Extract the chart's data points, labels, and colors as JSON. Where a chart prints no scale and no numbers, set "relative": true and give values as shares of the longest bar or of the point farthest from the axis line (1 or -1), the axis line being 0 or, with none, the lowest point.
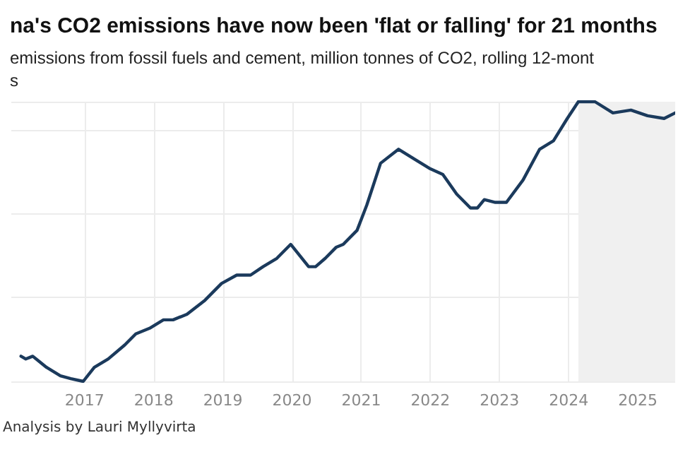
{
  "chart_data": {
    "type": "line",
    "title": "na's CO2 emissions have now been 'flat or falling' for 21 months",
    "subtitle": "emissions from fossil fuels and cement, million tonnes of CO2, rolling 12-mont\ns",
    "annotations": [
      "Analysis by Lauri Myllyvirta"
    ],
    "relative": true,
    "xlim": [
      2015.94,
      2025.54
    ],
    "xticks": [
      2017,
      2018,
      2019,
      2020,
      2021,
      2022,
      2023,
      2024,
      2025
    ],
    "grid": true,
    "marker": "none",
    "line_style": "solid",
    "bands": [
      {
        "axis": "x",
        "from": 2024.14,
        "to": 2025.54,
        "color": "#f0f0f0"
      }
    ],
    "series": [
      {
        "color": "#1b3a5c",
        "x": [
          2016.08,
          2016.15,
          2016.25,
          2016.45,
          2016.65,
          2016.8,
          2016.98,
          2017.14,
          2017.34,
          2017.58,
          2017.74,
          2017.94,
          2018.14,
          2018.28,
          2018.48,
          2018.74,
          2018.98,
          2019.2,
          2019.4,
          2019.58,
          2019.78,
          2019.98,
          2020.24,
          2020.34,
          2020.48,
          2020.64,
          2020.74,
          2020.94,
          2021.08,
          2021.28,
          2021.54,
          2021.8,
          2022.0,
          2022.18,
          2022.38,
          2022.58,
          2022.68,
          2022.78,
          2022.94,
          2023.1,
          2023.34,
          2023.58,
          2023.78,
          2023.98,
          2024.14,
          2024.38,
          2024.64,
          2024.9,
          2025.14,
          2025.38,
          2025.54
        ],
        "values": [
          0.09,
          0.08,
          0.09,
          0.05,
          0.02,
          0.01,
          0,
          0.05,
          0.08,
          0.13,
          0.17,
          0.19,
          0.22,
          0.22,
          0.24,
          0.29,
          0.35,
          0.38,
          0.38,
          0.41,
          0.44,
          0.49,
          0.41,
          0.41,
          0.44,
          0.48,
          0.49,
          0.54,
          0.63,
          0.78,
          0.83,
          0.79,
          0.76,
          0.74,
          0.67,
          0.62,
          0.62,
          0.65,
          0.64,
          0.64,
          0.72,
          0.83,
          0.86,
          0.94,
          1,
          1,
          0.96,
          0.97,
          0.95,
          0.94,
          0.96
        ]
      }
    ]
  }
}
